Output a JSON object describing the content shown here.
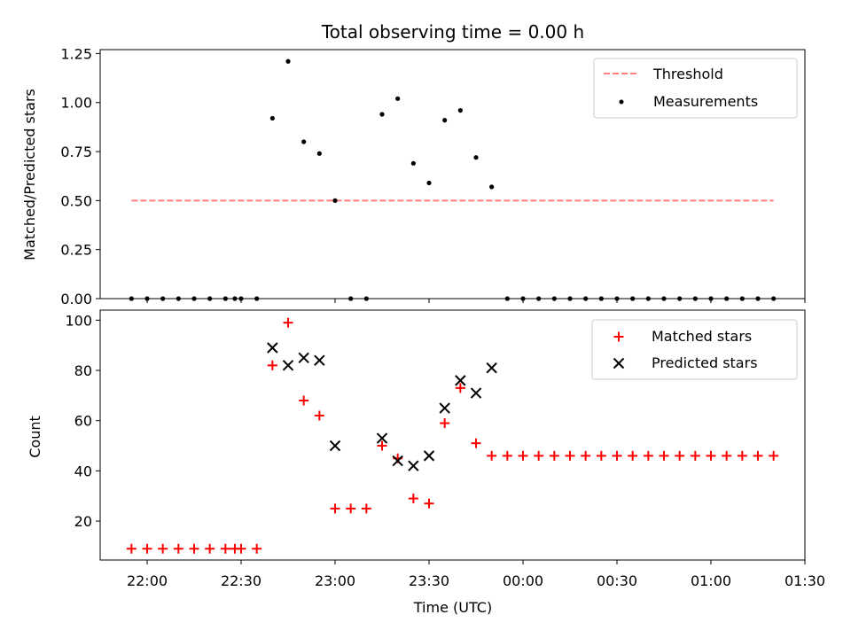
{
  "chart_data": [
    {
      "type": "scatter",
      "title": "Total observing time = 0.00 h",
      "xlabel": "",
      "ylabel": "Matched/Predicted stars",
      "xlim_hours": [
        21.75,
        25.5
      ],
      "ylim": [
        0,
        1.27
      ],
      "yticks": [
        0.0,
        0.25,
        0.5,
        0.75,
        1.0,
        1.25
      ],
      "ytick_labels": [
        "0.00",
        "0.25",
        "0.50",
        "0.75",
        "1.00",
        "1.25"
      ],
      "legend": {
        "position": "top-right",
        "entries": [
          {
            "name": "Threshold",
            "color": "#ff7f7f",
            "style": "dashed-line"
          },
          {
            "name": "Measurements",
            "color": "#000000",
            "style": "dot"
          }
        ]
      },
      "threshold": {
        "name": "Threshold",
        "y": 0.5,
        "x_start": 21.9167,
        "x_end": 25.3333,
        "color": "#ff7f7f"
      },
      "series": [
        {
          "name": "Measurements",
          "color": "#000000",
          "points": [
            [
              21.9167,
              0.0
            ],
            [
              22.0,
              0.0
            ],
            [
              22.0833,
              0.0
            ],
            [
              22.1667,
              0.0
            ],
            [
              22.25,
              0.0
            ],
            [
              22.3333,
              0.0
            ],
            [
              22.4167,
              0.0
            ],
            [
              22.4667,
              0.0
            ],
            [
              22.5,
              0.0
            ],
            [
              22.5833,
              0.0
            ],
            [
              22.6667,
              0.92
            ],
            [
              22.75,
              1.21
            ],
            [
              22.8333,
              0.8
            ],
            [
              22.9167,
              0.74
            ],
            [
              23.0,
              0.5
            ],
            [
              23.0833,
              0.0
            ],
            [
              23.1667,
              0.0
            ],
            [
              23.25,
              0.94
            ],
            [
              23.3333,
              1.02
            ],
            [
              23.4167,
              0.69
            ],
            [
              23.5,
              0.59
            ],
            [
              23.5833,
              0.91
            ],
            [
              23.6667,
              0.96
            ],
            [
              23.75,
              0.72
            ],
            [
              23.8333,
              0.57
            ],
            [
              23.9167,
              0.0
            ],
            [
              24.0,
              0.0
            ],
            [
              24.0833,
              0.0
            ],
            [
              24.1667,
              0.0
            ],
            [
              24.25,
              0.0
            ],
            [
              24.3333,
              0.0
            ],
            [
              24.4167,
              0.0
            ],
            [
              24.5,
              0.0
            ],
            [
              24.5833,
              0.0
            ],
            [
              24.6667,
              0.0
            ],
            [
              24.75,
              0.0
            ],
            [
              24.8333,
              0.0
            ],
            [
              24.9167,
              0.0
            ],
            [
              25.0,
              0.0
            ],
            [
              25.0833,
              0.0
            ],
            [
              25.1667,
              0.0
            ],
            [
              25.25,
              0.0
            ],
            [
              25.3333,
              0.0
            ]
          ]
        }
      ]
    },
    {
      "type": "scatter",
      "title": "",
      "xlabel": "Time (UTC)",
      "ylabel": "Count",
      "xlim_hours": [
        21.75,
        25.5
      ],
      "xticks_hours": [
        22.0,
        22.5,
        23.0,
        23.5,
        24.0,
        24.5,
        25.0,
        25.5
      ],
      "xtick_labels": [
        "22:00",
        "22:30",
        "23:00",
        "23:30",
        "00:00",
        "00:30",
        "01:00",
        "01:30"
      ],
      "ylim": [
        4.5,
        104
      ],
      "yticks": [
        20,
        40,
        60,
        80,
        100
      ],
      "ytick_labels": [
        "20",
        "40",
        "60",
        "80",
        "100"
      ],
      "legend": {
        "position": "top-right",
        "entries": [
          {
            "name": "Matched stars",
            "color": "#ff0000",
            "style": "plus"
          },
          {
            "name": "Predicted stars",
            "color": "#000000",
            "style": "cross"
          }
        ]
      },
      "series": [
        {
          "name": "Matched stars",
          "color": "#ff0000",
          "marker": "plus",
          "points": [
            [
              21.9167,
              9
            ],
            [
              22.0,
              9
            ],
            [
              22.0833,
              9
            ],
            [
              22.1667,
              9
            ],
            [
              22.25,
              9
            ],
            [
              22.3333,
              9
            ],
            [
              22.4167,
              9
            ],
            [
              22.4667,
              9
            ],
            [
              22.5,
              9
            ],
            [
              22.5833,
              9
            ],
            [
              22.6667,
              82
            ],
            [
              22.75,
              99
            ],
            [
              22.8333,
              68
            ],
            [
              22.9167,
              62
            ],
            [
              23.0,
              25
            ],
            [
              23.0833,
              25
            ],
            [
              23.1667,
              25
            ],
            [
              23.25,
              50
            ],
            [
              23.3333,
              45
            ],
            [
              23.4167,
              29
            ],
            [
              23.5,
              27
            ],
            [
              23.5833,
              59
            ],
            [
              23.6667,
              73
            ],
            [
              23.75,
              51
            ],
            [
              23.8333,
              46
            ],
            [
              23.9167,
              46
            ],
            [
              24.0,
              46
            ],
            [
              24.0833,
              46
            ],
            [
              24.1667,
              46
            ],
            [
              24.25,
              46
            ],
            [
              24.3333,
              46
            ],
            [
              24.4167,
              46
            ],
            [
              24.5,
              46
            ],
            [
              24.5833,
              46
            ],
            [
              24.6667,
              46
            ],
            [
              24.75,
              46
            ],
            [
              24.8333,
              46
            ],
            [
              24.9167,
              46
            ],
            [
              25.0,
              46
            ],
            [
              25.0833,
              46
            ],
            [
              25.1667,
              46
            ],
            [
              25.25,
              46
            ],
            [
              25.3333,
              46
            ]
          ]
        },
        {
          "name": "Predicted stars",
          "color": "#000000",
          "marker": "cross",
          "points": [
            [
              22.6667,
              89
            ],
            [
              22.75,
              82
            ],
            [
              22.8333,
              85
            ],
            [
              22.9167,
              84
            ],
            [
              23.0,
              50
            ],
            [
              23.25,
              53
            ],
            [
              23.3333,
              44
            ],
            [
              23.4167,
              42
            ],
            [
              23.5,
              46
            ],
            [
              23.5833,
              65
            ],
            [
              23.6667,
              76
            ],
            [
              23.75,
              71
            ],
            [
              23.8333,
              81
            ]
          ]
        }
      ]
    }
  ]
}
